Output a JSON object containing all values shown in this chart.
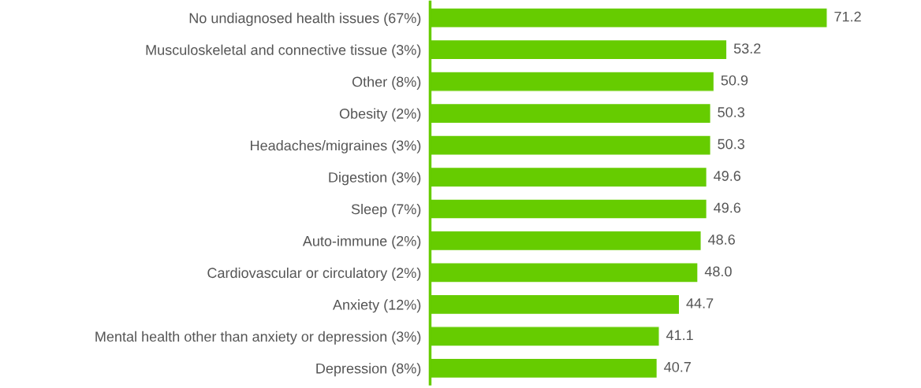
{
  "chart_data": {
    "type": "bar",
    "orientation": "horizontal",
    "categories": [
      "No undiagnosed health issues (67%)",
      "Musculoskeletal and connective tissue (3%)",
      "Other (8%)",
      "Obesity (2%)",
      "Headaches/migraines (3%)",
      "Digestion (3%)",
      "Sleep (7%)",
      "Auto-immune (2%)",
      "Cardiovascular or circulatory (2%)",
      "Anxiety (12%)",
      "Mental health other than anxiety or depression (3%)",
      "Depression (8%)"
    ],
    "values": [
      71.2,
      53.2,
      50.9,
      50.3,
      50.3,
      49.6,
      49.6,
      48.6,
      48.0,
      44.7,
      41.1,
      40.7
    ],
    "value_labels": [
      "71.2",
      "53.2",
      "50.9",
      "50.3",
      "50.3",
      "49.6",
      "49.6",
      "48.6",
      "48.0",
      "44.7",
      "41.1",
      "40.7"
    ],
    "color": "#66cc00",
    "tick_labels": "y",
    "grid": false,
    "legend": false
  }
}
